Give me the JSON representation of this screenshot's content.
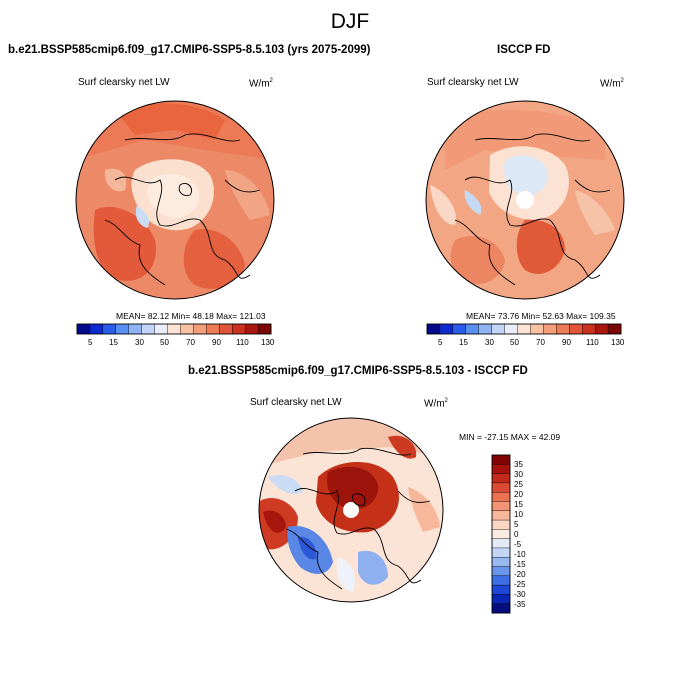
{
  "figure": {
    "title": "DJF",
    "panels": [
      {
        "heading": "b.e21.BSSP585cmip6.f09_g17.CMIP6-SSP5-8.5.103 (yrs 2075-2099)",
        "field_label": "Surf clearsky net LW",
        "units_base": "W/m",
        "units_exp": "2",
        "stats": "MEAN=  82.12  Min=  48.18  Max=  121.03",
        "mean": 82.12,
        "min": 48.18,
        "max": 121.03
      },
      {
        "heading": "ISCCP FD",
        "field_label": "Surf clearsky net LW",
        "units_base": "W/m",
        "units_exp": "2",
        "stats": "MEAN=  73.76  Min=  52.63  Max=  109.35",
        "mean": 73.76,
        "min": 52.63,
        "max": 109.35
      },
      {
        "heading": "b.e21.BSSP585cmip6.f09_g17.CMIP6-SSP5-8.5.103 - ISCCP FD",
        "field_label": "Surf clearsky net LW",
        "units_base": "W/m",
        "units_exp": "2",
        "stats": "MIN = -27.15 MAX =  42.09",
        "min": -27.15,
        "max": 42.09
      }
    ],
    "colorbar_main": {
      "tick_labels": [
        "5",
        "15",
        "30",
        "50",
        "70",
        "90",
        "110",
        "130"
      ],
      "colors": [
        "#050a8c",
        "#0d2bd1",
        "#2a5ee8",
        "#5b8ef2",
        "#8fb3f5",
        "#c4d6f7",
        "#e9eef8",
        "#fce3d3",
        "#f8c2a3",
        "#f3a07a",
        "#ec7c55",
        "#e2553a",
        "#cc3120",
        "#a8180f",
        "#7a0606"
      ]
    },
    "colorbar_diff": {
      "tick_labels": [
        "35",
        "30",
        "25",
        "20",
        "15",
        "10",
        "5",
        "0",
        "-5",
        "-10",
        "-15",
        "-20",
        "-25",
        "-30",
        "-35"
      ],
      "colors": [
        "#800404",
        "#a8120c",
        "#c42a1c",
        "#dd4a33",
        "#ec7052",
        "#f29575",
        "#f7b79c",
        "#fad6c3",
        "#fbebe1",
        "#e3ebf7",
        "#c3d5f4",
        "#98b8f0",
        "#6a93ea",
        "#3e6ee3",
        "#1d48d6",
        "#0b26b4",
        "#040f7d"
      ]
    }
  }
}
